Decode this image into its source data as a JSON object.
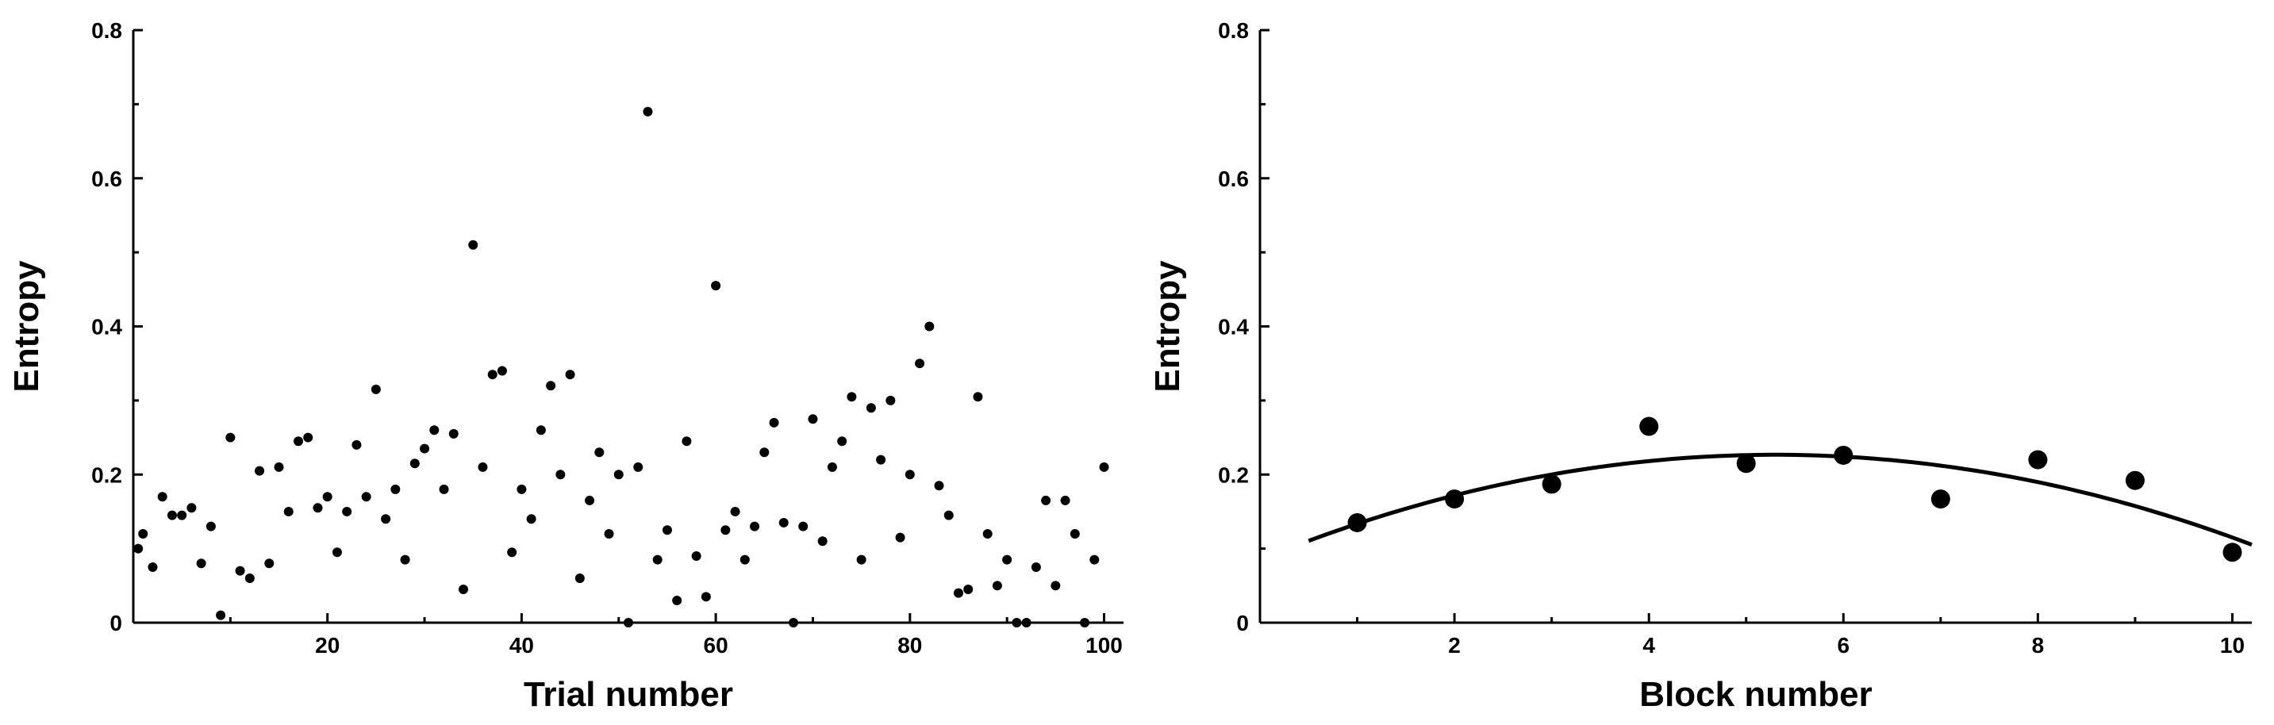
{
  "chart_data": [
    {
      "type": "scatter",
      "xlabel": "Trial number",
      "ylabel": "Entropy",
      "xlim": [
        0,
        102
      ],
      "ylim": [
        0,
        0.8
      ],
      "xticks": [
        20,
        40,
        60,
        80,
        100
      ],
      "yticks": [
        0,
        0.2,
        0.4,
        0.6,
        0.8
      ],
      "ytick_labels": [
        "0",
        "0.2",
        "0.4",
        "0.6",
        "0.8"
      ],
      "grid": false,
      "marker_color": "#000000",
      "points": [
        [
          0.5,
          0.1
        ],
        [
          1,
          0.12
        ],
        [
          2,
          0.075
        ],
        [
          3,
          0.17
        ],
        [
          4,
          0.145
        ],
        [
          5,
          0.145
        ],
        [
          6,
          0.155
        ],
        [
          7,
          0.08
        ],
        [
          8,
          0.13
        ],
        [
          9,
          0.01
        ],
        [
          10,
          0.25
        ],
        [
          11,
          0.07
        ],
        [
          12,
          0.06
        ],
        [
          13,
          0.205
        ],
        [
          14,
          0.08
        ],
        [
          15,
          0.21
        ],
        [
          16,
          0.15
        ],
        [
          17,
          0.245
        ],
        [
          18,
          0.25
        ],
        [
          19,
          0.155
        ],
        [
          20,
          0.17
        ],
        [
          21,
          0.095
        ],
        [
          22,
          0.15
        ],
        [
          23,
          0.24
        ],
        [
          24,
          0.17
        ],
        [
          25,
          0.315
        ],
        [
          26,
          0.14
        ],
        [
          27,
          0.18
        ],
        [
          28,
          0.085
        ],
        [
          29,
          0.215
        ],
        [
          30,
          0.235
        ],
        [
          31,
          0.26
        ],
        [
          32,
          0.18
        ],
        [
          33,
          0.255
        ],
        [
          34,
          0.045
        ],
        [
          35,
          0.51
        ],
        [
          36,
          0.21
        ],
        [
          37,
          0.335
        ],
        [
          38,
          0.34
        ],
        [
          39,
          0.095
        ],
        [
          40,
          0.18
        ],
        [
          41,
          0.14
        ],
        [
          42,
          0.26
        ],
        [
          43,
          0.32
        ],
        [
          44,
          0.2
        ],
        [
          45,
          0.335
        ],
        [
          46,
          0.06
        ],
        [
          47,
          0.165
        ],
        [
          48,
          0.23
        ],
        [
          49,
          0.12
        ],
        [
          50,
          0.2
        ],
        [
          51,
          0.0
        ],
        [
          52,
          0.21
        ],
        [
          53,
          0.69
        ],
        [
          54,
          0.085
        ],
        [
          55,
          0.125
        ],
        [
          56,
          0.03
        ],
        [
          57,
          0.245
        ],
        [
          58,
          0.09
        ],
        [
          59,
          0.035
        ],
        [
          60,
          0.455
        ],
        [
          61,
          0.125
        ],
        [
          62,
          0.15
        ],
        [
          63,
          0.085
        ],
        [
          64,
          0.13
        ],
        [
          65,
          0.23
        ],
        [
          66,
          0.27
        ],
        [
          67,
          0.135
        ],
        [
          68,
          0.0
        ],
        [
          69,
          0.13
        ],
        [
          70,
          0.275
        ],
        [
          71,
          0.11
        ],
        [
          72,
          0.21
        ],
        [
          73,
          0.245
        ],
        [
          74,
          0.305
        ],
        [
          75,
          0.085
        ],
        [
          76,
          0.29
        ],
        [
          77,
          0.22
        ],
        [
          78,
          0.3
        ],
        [
          79,
          0.115
        ],
        [
          80,
          0.2
        ],
        [
          81,
          0.35
        ],
        [
          82,
          0.4
        ],
        [
          83,
          0.185
        ],
        [
          84,
          0.145
        ],
        [
          85,
          0.04
        ],
        [
          86,
          0.045
        ],
        [
          87,
          0.305
        ],
        [
          88,
          0.12
        ],
        [
          89,
          0.05
        ],
        [
          90,
          0.085
        ],
        [
          91,
          0.0
        ],
        [
          92,
          0.0
        ],
        [
          93,
          0.075
        ],
        [
          94,
          0.165
        ],
        [
          95,
          0.05
        ],
        [
          96,
          0.165
        ],
        [
          97,
          0.12
        ],
        [
          98,
          0.0
        ],
        [
          99,
          0.085
        ],
        [
          100,
          0.21
        ]
      ]
    },
    {
      "type": "scatter",
      "xlabel": "Block number",
      "ylabel": "Entropy",
      "xlim": [
        0,
        10.2
      ],
      "ylim": [
        0,
        0.8
      ],
      "xticks": [
        2,
        4,
        6,
        8,
        10
      ],
      "yticks": [
        0,
        0.2,
        0.4,
        0.6,
        0.8
      ],
      "ytick_labels": [
        "0",
        "0.2",
        "0.4",
        "0.6",
        "0.8"
      ],
      "grid": false,
      "marker_color": "#000000",
      "points": [
        [
          1,
          0.135
        ],
        [
          2,
          0.167
        ],
        [
          3,
          0.187
        ],
        [
          4,
          0.265
        ],
        [
          5,
          0.215
        ],
        [
          6,
          0.226
        ],
        [
          7,
          0.167
        ],
        [
          8,
          0.22
        ],
        [
          9,
          0.192
        ],
        [
          10,
          0.095
        ]
      ],
      "fit": {
        "type": "quadratic",
        "coefficients": [
          0.085,
          0.0535,
          -0.00505
        ],
        "x_range": [
          0.5,
          10.2
        ]
      }
    }
  ]
}
